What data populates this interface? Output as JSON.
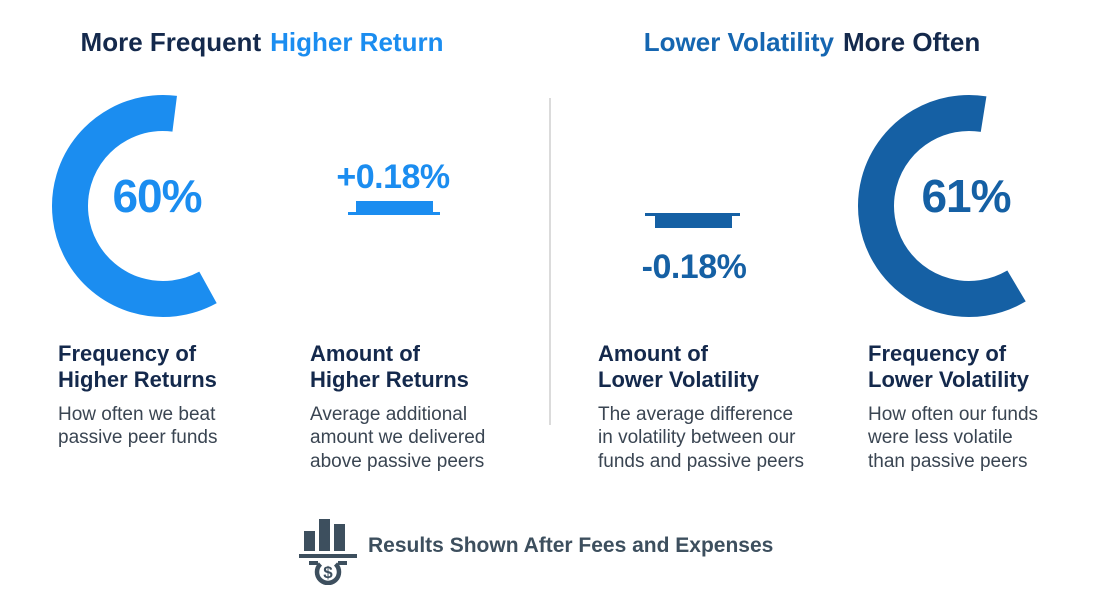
{
  "colors": {
    "bright_blue": "#1B8DF0",
    "dark_blue": "#1560A4",
    "heading_navy": "#14294C",
    "heading_blue_right": "#1566B1",
    "body_text": "#3A4552",
    "footer_slate": "#3D4F5E",
    "divider": "#DBDBDB",
    "background": "#FFFFFF"
  },
  "header": {
    "left": {
      "part1": "More Frequent",
      "part2": "Higher Return"
    },
    "right": {
      "part1": "Lower Volatility",
      "part2": "More Often"
    }
  },
  "chart_data": [
    {
      "type": "donut",
      "group": "More Frequent Higher Return",
      "value": 60,
      "unit": "%",
      "display": "60%",
      "color": "#1B8DF0",
      "metric": "Frequency of Higher Returns",
      "metric_lines": "Frequency of\nHigher Returns",
      "description": "How often we beat passive peer funds",
      "description_lines": "How often we beat\npassive peer funds"
    },
    {
      "type": "bar",
      "group": "More Frequent Higher Return",
      "value": 0.18,
      "unit": "%",
      "display": "+0.18%",
      "bar_direction": "up",
      "color": "#1B8DF0",
      "metric": "Amount of Higher Returns",
      "metric_lines": "Amount of\nHigher Returns",
      "description": "Average additional amount we delivered above passive peers",
      "description_lines": "Average additional\namount we delivered\nabove passive peers"
    },
    {
      "type": "bar",
      "group": "Lower Volatility More Often",
      "value": -0.18,
      "unit": "%",
      "display": "-0.18%",
      "bar_direction": "down",
      "color": "#1560A4",
      "metric": "Amount of Lower Volatility",
      "metric_lines": "Amount of\nLower Volatility",
      "description": "The average difference in volatility between our funds and passive peers",
      "description_lines": "The average difference\nin volatility between our\nfunds and passive peers"
    },
    {
      "type": "donut",
      "group": "Lower Volatility More Often",
      "value": 61,
      "unit": "%",
      "display": "61%",
      "color": "#1560A4",
      "metric": "Frequency of Lower Volatility",
      "metric_lines": "Frequency of\nLower Volatility",
      "description": "How often our funds were less volatile than passive peers",
      "description_lines": "How often our funds\nwere less volatile\nthan passive peers"
    }
  ],
  "footer": {
    "label": "Results Shown After Fees and Expenses",
    "icon": "bar-chart-dollar-icon",
    "icon_symbol": "$"
  }
}
